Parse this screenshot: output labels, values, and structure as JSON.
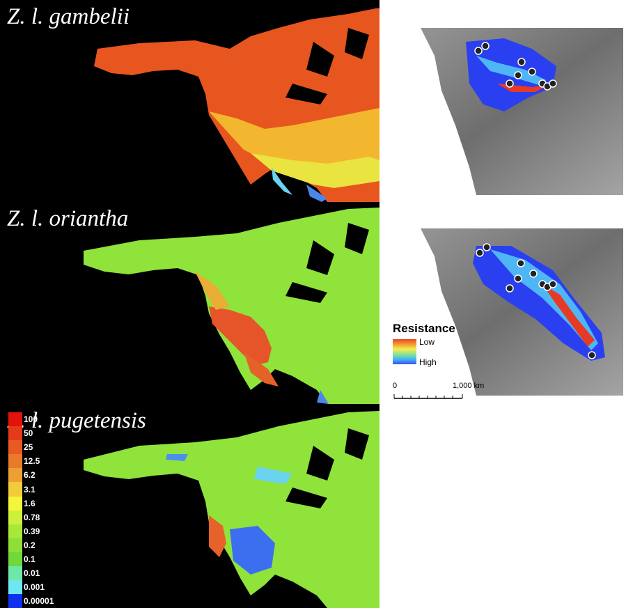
{
  "panels": [
    {
      "title": "Z. l. gambelii",
      "scheme": "red"
    },
    {
      "title": "Z. l. oriantha",
      "scheme": "green-red"
    },
    {
      "title": "Z. l. pugetensis",
      "scheme": "green-blue"
    }
  ],
  "scale_legend": [
    {
      "label": "100",
      "color": "#e3130c"
    },
    {
      "label": "50",
      "color": "#e53b1a"
    },
    {
      "label": "25",
      "color": "#e75a22"
    },
    {
      "label": "12.5",
      "color": "#e97a2a"
    },
    {
      "label": "6.2",
      "color": "#eca033"
    },
    {
      "label": "3.1",
      "color": "#f2cb3a"
    },
    {
      "label": "1.6",
      "color": "#f5f53c"
    },
    {
      "label": "0.78",
      "color": "#ccf03c"
    },
    {
      "label": "0.39",
      "color": "#a8e83b"
    },
    {
      "label": "0.2",
      "color": "#8ce038"
    },
    {
      "label": "0.1",
      "color": "#6fd83a"
    },
    {
      "label": "0.01",
      "color": "#6ee8a8"
    },
    {
      "label": "0.001",
      "color": "#6ee8f0"
    },
    {
      "label": "0.00001",
      "color": "#1030ee"
    }
  ],
  "resistance_legend": {
    "title": "Resistance",
    "low": "Low",
    "high": "High"
  },
  "scale_bar": {
    "start": "0",
    "end": "1,000 km"
  }
}
